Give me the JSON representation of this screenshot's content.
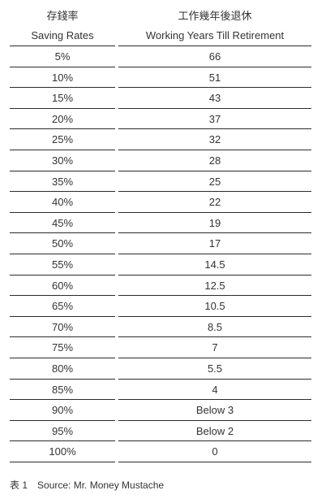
{
  "table": {
    "headers": [
      {
        "zh": "存錢率",
        "en": "Saving Rates"
      },
      {
        "zh": "工作幾年後退休",
        "en": "Working Years Till Retirement"
      }
    ],
    "rows": [
      [
        "5%",
        "66"
      ],
      [
        "10%",
        "51"
      ],
      [
        "15%",
        "43"
      ],
      [
        "20%",
        "37"
      ],
      [
        "25%",
        "32"
      ],
      [
        "30%",
        "28"
      ],
      [
        "35%",
        "25"
      ],
      [
        "40%",
        "22"
      ],
      [
        "45%",
        "19"
      ],
      [
        "50%",
        "17"
      ],
      [
        "55%",
        "14.5"
      ],
      [
        "60%",
        "12.5"
      ],
      [
        "65%",
        "10.5"
      ],
      [
        "70%",
        "8.5"
      ],
      [
        "75%",
        "7"
      ],
      [
        "80%",
        "5.5"
      ],
      [
        "85%",
        "4"
      ],
      [
        "90%",
        "Below 3"
      ],
      [
        "95%",
        "Below 2"
      ],
      [
        "100%",
        "0"
      ]
    ]
  },
  "caption": {
    "label": "表 1",
    "text": "Source: Mr. Money Mustache"
  }
}
